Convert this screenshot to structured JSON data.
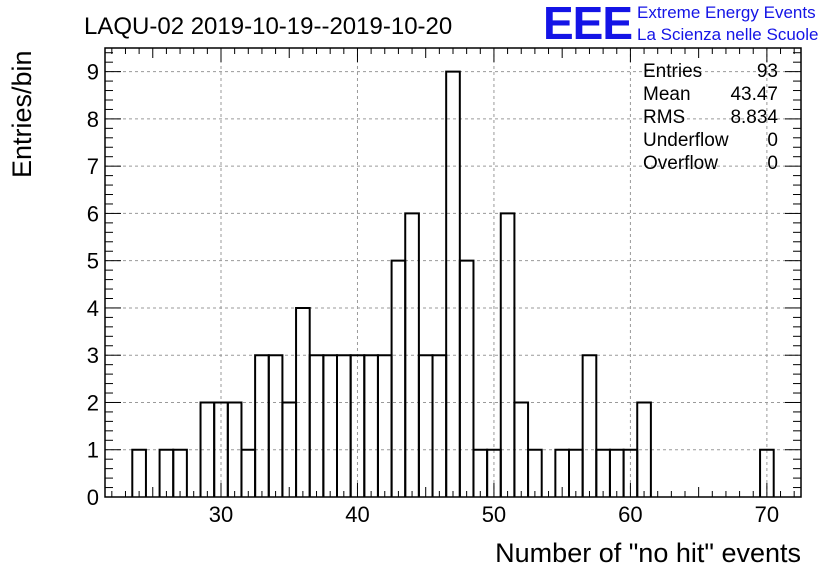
{
  "chart_data": {
    "type": "bar",
    "title": "LAQU-02 2019-10-19--2019-10-20",
    "xlabel": "Number of \"no hit\" events",
    "ylabel": "Entries/bin",
    "xlim": [
      21.5,
      72.5
    ],
    "ylim": [
      0,
      9.5
    ],
    "bin_width": 1,
    "x_ticks": [
      30,
      40,
      50,
      60,
      70
    ],
    "y_ticks": [
      0,
      1,
      2,
      3,
      4,
      5,
      6,
      7,
      8,
      9
    ],
    "grid": true,
    "bins": [
      {
        "x": 24,
        "value": 1
      },
      {
        "x": 26,
        "value": 1
      },
      {
        "x": 27,
        "value": 1
      },
      {
        "x": 29,
        "value": 2
      },
      {
        "x": 30,
        "value": 2
      },
      {
        "x": 31,
        "value": 2
      },
      {
        "x": 32,
        "value": 1
      },
      {
        "x": 33,
        "value": 3
      },
      {
        "x": 34,
        "value": 3
      },
      {
        "x": 35,
        "value": 2
      },
      {
        "x": 36,
        "value": 4
      },
      {
        "x": 37,
        "value": 3
      },
      {
        "x": 38,
        "value": 3
      },
      {
        "x": 39,
        "value": 3
      },
      {
        "x": 40,
        "value": 3
      },
      {
        "x": 41,
        "value": 3
      },
      {
        "x": 42,
        "value": 3
      },
      {
        "x": 43,
        "value": 5
      },
      {
        "x": 44,
        "value": 6
      },
      {
        "x": 45,
        "value": 3
      },
      {
        "x": 46,
        "value": 3
      },
      {
        "x": 47,
        "value": 9
      },
      {
        "x": 48,
        "value": 5
      },
      {
        "x": 49,
        "value": 1
      },
      {
        "x": 50,
        "value": 1
      },
      {
        "x": 51,
        "value": 6
      },
      {
        "x": 52,
        "value": 2
      },
      {
        "x": 53,
        "value": 1
      },
      {
        "x": 55,
        "value": 1
      },
      {
        "x": 56,
        "value": 1
      },
      {
        "x": 57,
        "value": 3
      },
      {
        "x": 58,
        "value": 1
      },
      {
        "x": 59,
        "value": 1
      },
      {
        "x": 60,
        "value": 1
      },
      {
        "x": 61,
        "value": 2
      },
      {
        "x": 70,
        "value": 1
      }
    ],
    "stats": [
      {
        "label": "Entries",
        "value": "93"
      },
      {
        "label": "Mean",
        "value": "43.47"
      },
      {
        "label": "RMS",
        "value": "8.834"
      },
      {
        "label": "Underflow",
        "value": "0"
      },
      {
        "label": "Overflow",
        "value": "0"
      }
    ],
    "stats_position": "top-right"
  },
  "logo": {
    "mark": "EEE",
    "line1": "Extreme Energy Events",
    "line2": "La Scienza nelle Scuole",
    "color": "#1414e6"
  }
}
